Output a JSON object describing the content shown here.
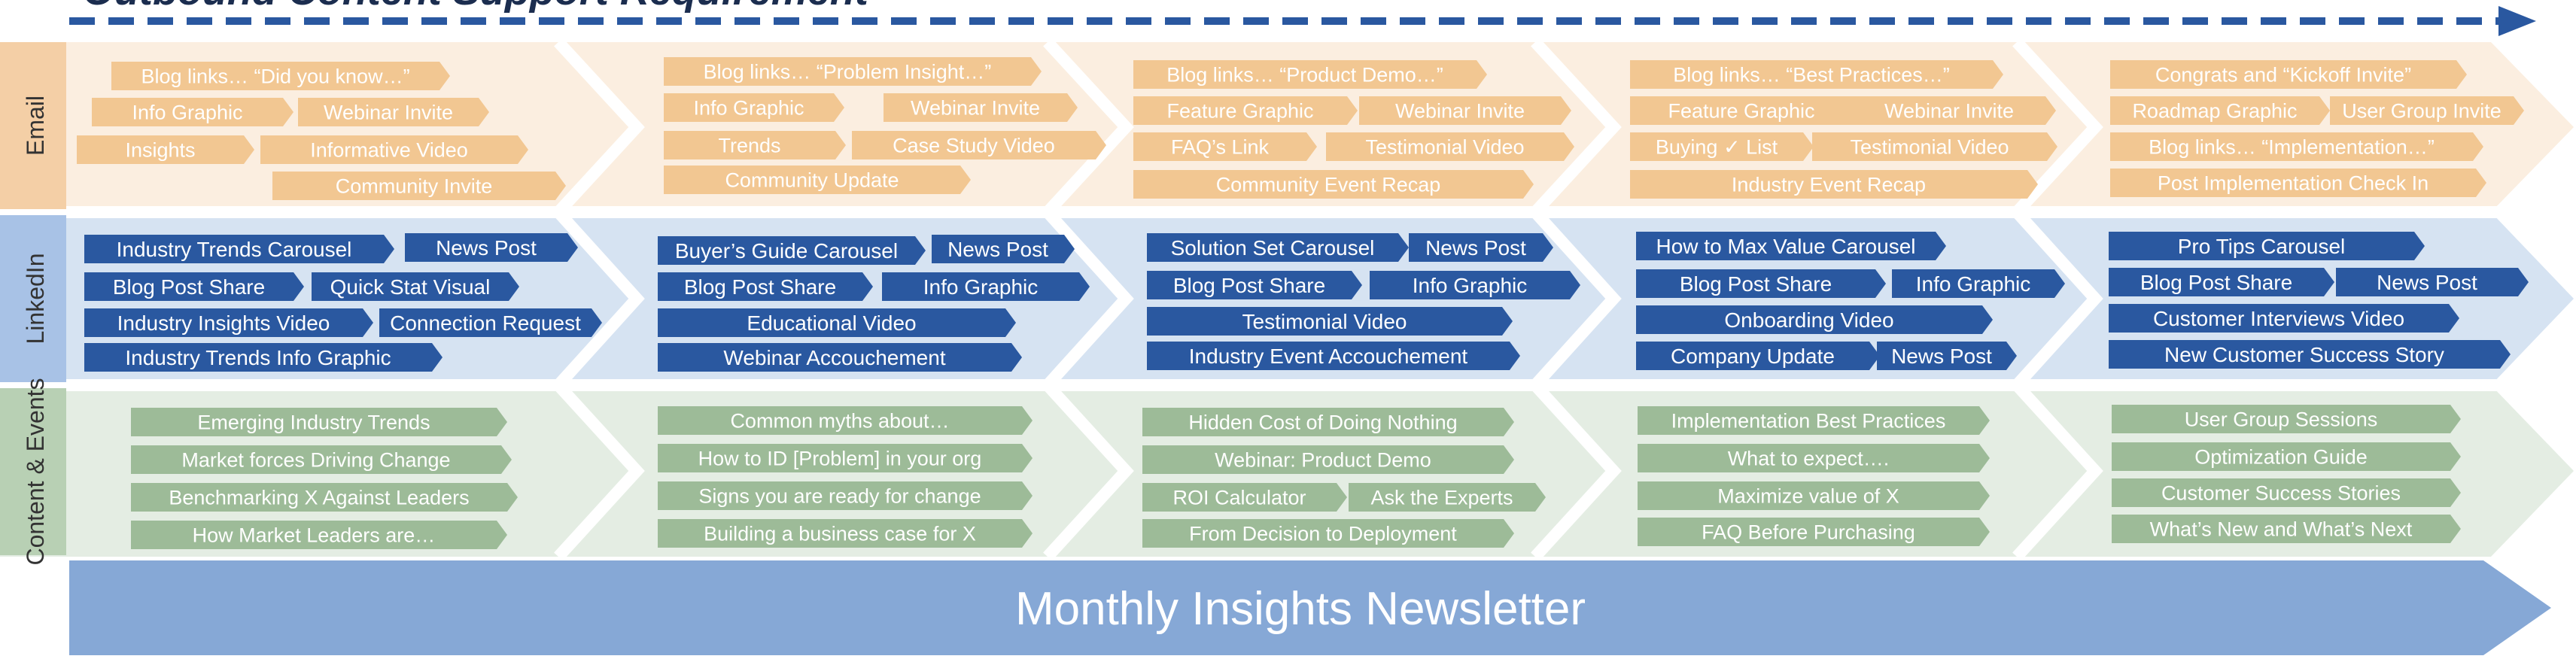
{
  "title": "Outbound Content Support Requirement",
  "rows": {
    "email": "Email",
    "linkedin": "LinkedIn",
    "content_events": "Content & Events"
  },
  "newsletter": "Monthly Insights Newsletter",
  "colors": {
    "email_bg": "#fbeee0",
    "email_row_label": "#f4cfa6",
    "email_tag": "#f2c792",
    "email_tag_text": "#ffffff",
    "linkedin_bg": "#d6e3f2",
    "linkedin_row_label": "#a8c2e6",
    "linkedin_tag": "#2a58a0",
    "linkedin_tag_text": "#ffffff",
    "content_bg": "#e4ede3",
    "content_row_label": "#b8d0b4",
    "content_tag": "#9dbb98",
    "content_tag_text": "#ffffff",
    "newsletter_fill": "#86a8d6",
    "dashed_arrow": "#2a58a0"
  },
  "stages": [
    {
      "email": [
        "Blog links… “Did you know…”",
        "Info Graphic",
        "Webinar Invite",
        "Insights",
        "Informative Video",
        "Community Invite"
      ],
      "linkedin": [
        "Industry Trends Carousel",
        "News Post",
        "Blog Post Share",
        "Quick Stat Visual",
        "Industry Insights Video",
        "Connection Request",
        "Industry Trends Info Graphic"
      ],
      "content": [
        "Emerging Industry Trends",
        "Market forces Driving Change",
        "Benchmarking X Against Leaders",
        "How Market Leaders are…"
      ]
    },
    {
      "email": [
        "Blog links… “Problem Insight…”",
        "Info Graphic",
        "Webinar Invite",
        "Trends",
        "Case Study Video",
        "Community Update"
      ],
      "linkedin": [
        "Buyer’s Guide Carousel",
        "News Post",
        "Blog Post Share",
        "Info Graphic",
        "Educational Video",
        "Webinar Accouchement"
      ],
      "content": [
        "Common myths about…",
        "How to ID [Problem] in your org",
        "Signs you are ready for change",
        "Building a business case for X"
      ]
    },
    {
      "email": [
        "Blog links… “Product Demo…”",
        "Feature Graphic",
        "Webinar Invite",
        "FAQ’s Link",
        "Testimonial Video",
        "Community Event Recap"
      ],
      "linkedin": [
        "Solution Set Carousel",
        "News Post",
        "Blog Post Share",
        "Info Graphic",
        "Testimonial Video",
        "Industry Event Accouchement"
      ],
      "content": [
        "Hidden Cost of Doing Nothing",
        "Webinar: Product Demo",
        "ROI Calculator",
        "Ask the Experts",
        "From Decision to Deployment"
      ]
    },
    {
      "email": [
        "Blog links… “Best Practices…”",
        "Feature Graphic",
        "Webinar Invite",
        "Buying ✓ List",
        "Testimonial Video",
        "Industry Event Recap"
      ],
      "linkedin": [
        "How to Max Value Carousel",
        "Blog Post Share",
        "Info Graphic",
        "Onboarding Video",
        "Company Update",
        "News Post"
      ],
      "content": [
        "Implementation Best Practices",
        "What to expect….",
        "Maximize value of X",
        "FAQ Before Purchasing"
      ]
    },
    {
      "email": [
        "Congrats and “Kickoff Invite”",
        "Roadmap Graphic",
        "User Group Invite",
        "Blog links… “Implementation…”",
        "Post Implementation Check In"
      ],
      "linkedin": [
        "Pro Tips Carousel",
        "Blog Post Share",
        "News Post",
        "Customer Interviews Video",
        "New Customer Success Story"
      ],
      "content": [
        "User Group Sessions",
        "Optimization Guide",
        "Customer Success Stories",
        "What’s New and What’s Next"
      ]
    }
  ]
}
